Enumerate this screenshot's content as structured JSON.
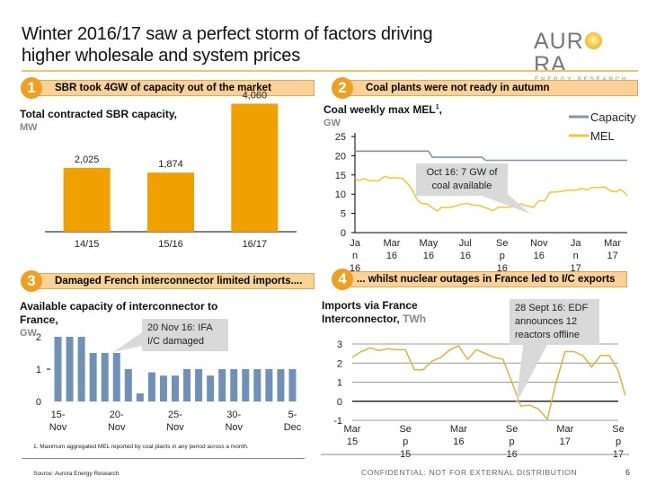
{
  "header": {
    "title_line1": "Winter 2016/17 saw a perfect storm of factors driving",
    "title_line2": "higher wholesale and system prices",
    "logo_main_left": "AUR",
    "logo_main_right": "RA",
    "logo_sub": "ENERGY RESEARCH"
  },
  "sections": [
    {
      "num": "1",
      "label": "SBR took 4GW of capacity out of the market"
    },
    {
      "num": "2",
      "label": "Coal plants were not ready in autumn"
    },
    {
      "num": "3",
      "label": "Damaged French interconnector limited imports...."
    },
    {
      "num": "4",
      "label": "... whilst nuclear outages in France led to I/C exports"
    }
  ],
  "colors": {
    "orange": "#f0a000",
    "steel_blue": "#7090b8",
    "capacity_grey": "#7f95a8",
    "mel_yellow": "#f0c830",
    "imports_gold": "#e0b040",
    "header_fill": "#fad296"
  },
  "callouts": {
    "coal": [
      "Oct 16: 7 GW of",
      "coal available"
    ],
    "ifa": [
      "20 Nov 16: IFA",
      "I/C damaged"
    ],
    "edf": [
      "28 Sept 16: EDF",
      "announces 12",
      "reactors offline"
    ]
  },
  "footer": {
    "footnote": "1. Maximum aggregated MEL reported by coal plants in any period across a month.",
    "source": "Source: Aurora Energy Research",
    "confidential": "CONFIDENTIAL: NOT FOR EXTERNAL DISTRIBUTION",
    "page": "6"
  },
  "chart_data": [
    {
      "id": "sbr",
      "type": "bar",
      "title": "Total contracted SBR capacity,",
      "unit": "MW",
      "categories": [
        "14/15",
        "15/16",
        "16/17"
      ],
      "values": [
        2025,
        1874,
        4060
      ],
      "data_labels": [
        "2,025",
        "1,874",
        "4,060"
      ],
      "ylim": [
        0,
        4500
      ],
      "grid": false
    },
    {
      "id": "coal",
      "type": "line",
      "title": "Coal weekly max MEL",
      "title_sup": "1",
      "title_suffix": ",",
      "unit": "GW",
      "x_tick_labels": [
        [
          "Ja",
          "n",
          "16"
        ],
        [
          "Mar",
          "16"
        ],
        [
          "May",
          "16"
        ],
        [
          "Jul",
          "16"
        ],
        [
          "Se",
          "p",
          "16"
        ],
        [
          "Nov",
          "16"
        ],
        [
          "Ja",
          "n",
          "17"
        ],
        [
          "Mar",
          "17"
        ]
      ],
      "x_range_months": [
        0,
        14.8
      ],
      "yticks": [
        0,
        5,
        10,
        15,
        20,
        25
      ],
      "ylim": [
        0,
        25
      ],
      "legend": {
        "position": "top-right",
        "entries": [
          "Capacity",
          "MEL"
        ]
      },
      "series": [
        {
          "name": "Capacity",
          "points": [
            [
              0,
              21.2
            ],
            [
              4.0,
              21.2
            ],
            [
              4.2,
              19.6
            ],
            [
              6.9,
              19.6
            ],
            [
              7.1,
              18.8
            ],
            [
              14.8,
              18.8
            ]
          ]
        },
        {
          "name": "MEL",
          "points": [
            [
              0,
              14.2
            ],
            [
              0.2,
              13.5
            ],
            [
              0.5,
              14.0
            ],
            [
              0.8,
              13.5
            ],
            [
              1.3,
              13.5
            ],
            [
              1.6,
              14.6
            ],
            [
              1.9,
              14.2
            ],
            [
              2.2,
              14.3
            ],
            [
              2.6,
              14.1
            ],
            [
              3.0,
              12.0
            ],
            [
              3.4,
              8.5
            ],
            [
              3.6,
              7.6
            ],
            [
              3.9,
              7.5
            ],
            [
              4.2,
              6.5
            ],
            [
              4.5,
              5.6
            ],
            [
              4.7,
              6.6
            ],
            [
              5.0,
              6.5
            ],
            [
              5.4,
              6.8
            ],
            [
              5.8,
              7.4
            ],
            [
              6.1,
              7.6
            ],
            [
              6.4,
              7.2
            ],
            [
              6.8,
              7.0
            ],
            [
              7.2,
              6.3
            ],
            [
              7.5,
              5.7
            ],
            [
              7.8,
              6.6
            ],
            [
              8.3,
              6.6
            ],
            [
              8.7,
              6.8
            ],
            [
              9.0,
              7.5
            ],
            [
              9.3,
              7.0
            ],
            [
              9.7,
              6.6
            ],
            [
              10.0,
              8.3
            ],
            [
              10.3,
              8.2
            ],
            [
              10.6,
              10.5
            ],
            [
              11.0,
              10.6
            ],
            [
              11.3,
              10.8
            ],
            [
              11.7,
              11.1
            ],
            [
              12.0,
              11.0
            ],
            [
              12.3,
              11.5
            ],
            [
              12.6,
              11.1
            ],
            [
              12.9,
              11.8
            ],
            [
              13.2,
              11.7
            ],
            [
              13.6,
              11.9
            ],
            [
              13.9,
              10.8
            ],
            [
              14.2,
              10.6
            ],
            [
              14.4,
              11.2
            ],
            [
              14.6,
              10.7
            ],
            [
              14.8,
              9.5
            ]
          ]
        }
      ]
    },
    {
      "id": "ifa",
      "type": "bar",
      "title_line1": "Available capacity of interconnector to",
      "title_line2": "France,",
      "unit": "GW",
      "x_tick_labels": [
        [
          "15-",
          "Nov"
        ],
        [
          "20-",
          "Nov"
        ],
        [
          "25-",
          "Nov"
        ],
        [
          "30-",
          "Nov"
        ],
        [
          "5-",
          "Dec"
        ]
      ],
      "tick_every": 5,
      "categories": [
        "15-Nov",
        "16-Nov",
        "17-Nov",
        "18-Nov",
        "19-Nov",
        "20-Nov",
        "21-Nov",
        "22-Nov",
        "23-Nov",
        "24-Nov",
        "25-Nov",
        "26-Nov",
        "27-Nov",
        "28-Nov",
        "29-Nov",
        "30-Nov",
        "1-Dec",
        "2-Dec",
        "3-Dec",
        "4-Dec",
        "5-Dec"
      ],
      "values": [
        2,
        2,
        2,
        1.5,
        1.5,
        1.5,
        1,
        0.25,
        0.9,
        0.8,
        0.8,
        1,
        1,
        0.8,
        1,
        1,
        1,
        1,
        1,
        1,
        1
      ],
      "yticks": [
        0,
        1,
        2
      ],
      "ylim": [
        0,
        2
      ]
    },
    {
      "id": "imports",
      "type": "line",
      "title_line1": "Imports via France",
      "title_line2": "Interconnector,",
      "unit": "TWh",
      "x_tick_labels": [
        [
          "Mar",
          "15"
        ],
        [
          "Se",
          "p",
          "15"
        ],
        [
          "Mar",
          "16"
        ],
        [
          "Se",
          "p",
          "16"
        ],
        [
          "Mar",
          "17"
        ],
        [
          "Se",
          "p",
          "17"
        ]
      ],
      "x_range_months": [
        0,
        30
      ],
      "yticks": [
        -1,
        0,
        1,
        2,
        3
      ],
      "ylim": [
        -1,
        3
      ],
      "grid": true,
      "series": [
        {
          "name": "Imports",
          "points": [
            [
              0,
              2.3
            ],
            [
              1,
              2.6
            ],
            [
              2,
              2.8
            ],
            [
              3,
              2.65
            ],
            [
              4,
              2.75
            ],
            [
              5,
              2.7
            ],
            [
              6,
              2.7
            ],
            [
              7,
              1.65
            ],
            [
              8,
              1.65
            ],
            [
              9,
              2.1
            ],
            [
              10,
              2.3
            ],
            [
              11,
              2.7
            ],
            [
              12,
              2.9
            ],
            [
              13,
              2.2
            ],
            [
              14,
              2.7
            ],
            [
              15,
              2.5
            ],
            [
              16,
              2.3
            ],
            [
              17,
              2.2
            ],
            [
              18,
              1.0
            ],
            [
              19,
              -0.25
            ],
            [
              20,
              -0.2
            ],
            [
              21,
              -0.4
            ],
            [
              22,
              -0.95
            ],
            [
              23,
              1.0
            ],
            [
              24,
              2.6
            ],
            [
              25,
              2.6
            ],
            [
              26,
              2.4
            ],
            [
              27,
              1.8
            ],
            [
              28,
              2.4
            ],
            [
              29,
              2.4
            ],
            [
              30,
              1.6
            ],
            [
              30.8,
              0.3
            ]
          ]
        }
      ]
    }
  ]
}
